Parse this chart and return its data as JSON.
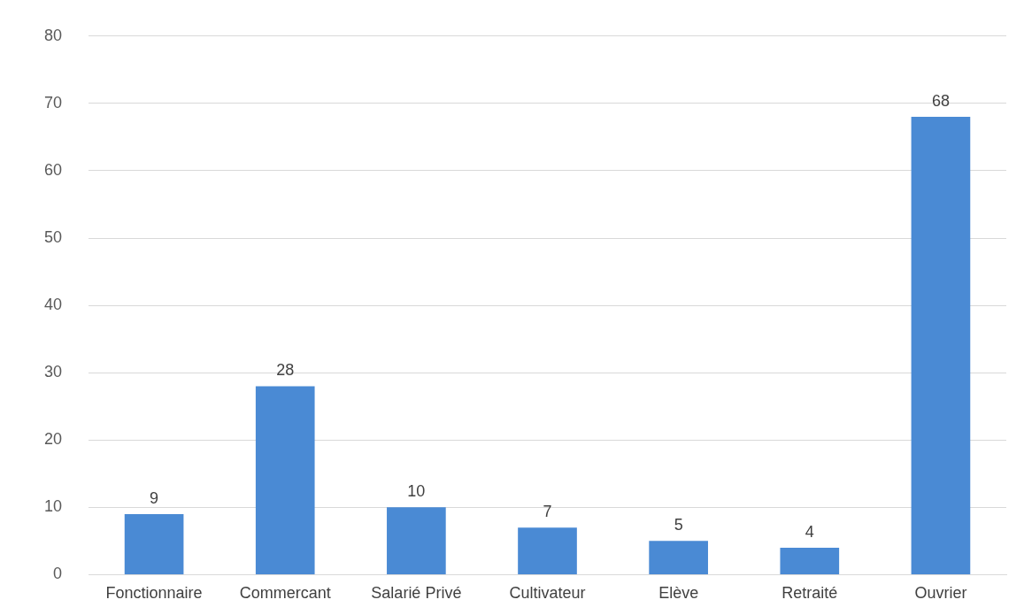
{
  "chart_data": {
    "type": "bar",
    "categories": [
      "Fonctionnaire",
      "Commercant",
      "Salarié Privé",
      "Cultivateur",
      "Elève",
      "Retraité",
      "Ouvrier"
    ],
    "values": [
      9,
      28,
      10,
      7,
      5,
      4,
      68
    ],
    "color": "#4a8ad4",
    "ylim": [
      0,
      80
    ],
    "yticks": [
      0,
      10,
      20,
      30,
      40,
      50,
      60,
      70,
      80
    ],
    "grid": "y",
    "data_labels": true
  }
}
